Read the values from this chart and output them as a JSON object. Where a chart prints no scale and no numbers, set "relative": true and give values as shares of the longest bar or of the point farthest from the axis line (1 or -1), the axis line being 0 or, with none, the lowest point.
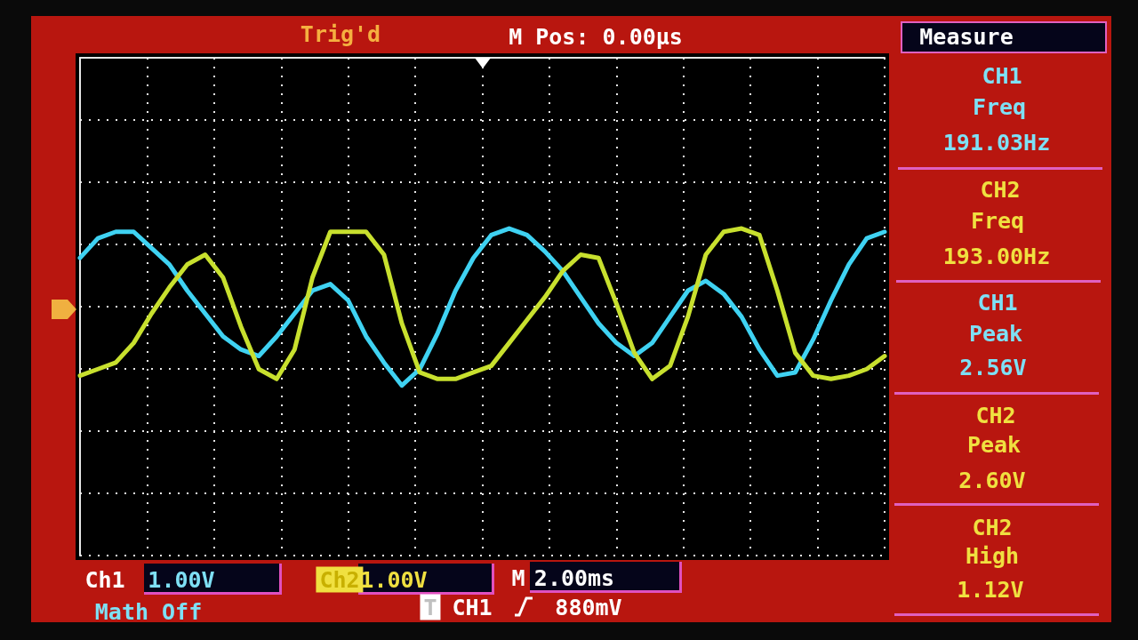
{
  "chart_data": {
    "type": "line",
    "relative": true,
    "grid": true,
    "marker": "none",
    "line_style": "solid",
    "categories": [
      null,
      null,
      null,
      null,
      null,
      null,
      null,
      null,
      null,
      null,
      null,
      null,
      null,
      null,
      null,
      null,
      null,
      null,
      null,
      null,
      null,
      null,
      null,
      null,
      null,
      null,
      null,
      null,
      null,
      null,
      null,
      null,
      null,
      null,
      null,
      null,
      null,
      null,
      null,
      null,
      null,
      null,
      null,
      null,
      null,
      null
    ],
    "series": [
      {
        "color": "#3fd2f2",
        "values": [
          0.91,
          0.97,
          0.99,
          0.99,
          0.94,
          0.89,
          0.81,
          0.74,
          0.67,
          0.63,
          0.61,
          0.67,
          0.74,
          0.81,
          0.83,
          0.78,
          0.67,
          0.59,
          0.52,
          0.57,
          0.68,
          0.81,
          0.91,
          0.98,
          1,
          0.98,
          0.93,
          0.87,
          0.79,
          0.71,
          0.65,
          0.61,
          0.65,
          0.73,
          0.81,
          0.84,
          0.8,
          0.73,
          0.63,
          0.55,
          0.56,
          0.66,
          0.78,
          0.89,
          0.97,
          0.99
        ]
      },
      {
        "color": "#c8e02e",
        "values": [
          0.55,
          0.57,
          0.59,
          0.65,
          0.74,
          0.82,
          0.89,
          0.92,
          0.85,
          0.7,
          0.57,
          0.54,
          0.63,
          0.85,
          0.99,
          0.99,
          0.99,
          0.92,
          0.71,
          0.56,
          0.54,
          0.54,
          0.56,
          0.58,
          0.65,
          0.72,
          0.79,
          0.87,
          0.92,
          0.91,
          0.77,
          0.62,
          0.54,
          0.58,
          0.73,
          0.92,
          0.99,
          1,
          0.98,
          0.81,
          0.62,
          0.55,
          0.54,
          0.55,
          0.57,
          0.61
        ]
      }
    ],
    "annotations": [
      "Trig'd",
      "M Pos: 0.00µs",
      "Measure",
      "CH1",
      "Freq",
      "191.03Hz",
      "CH2",
      "Freq",
      "193.00Hz",
      "CH1",
      "Peak",
      "2.56V",
      "CH2",
      "Peak",
      "2.60V",
      "CH2",
      "High",
      "1.12V",
      "Ch1",
      "1.00V",
      "Ch2",
      "1.00V",
      "M",
      "2.00ms",
      "Math Off",
      "T",
      "CH1",
      "880mV"
    ]
  }
}
